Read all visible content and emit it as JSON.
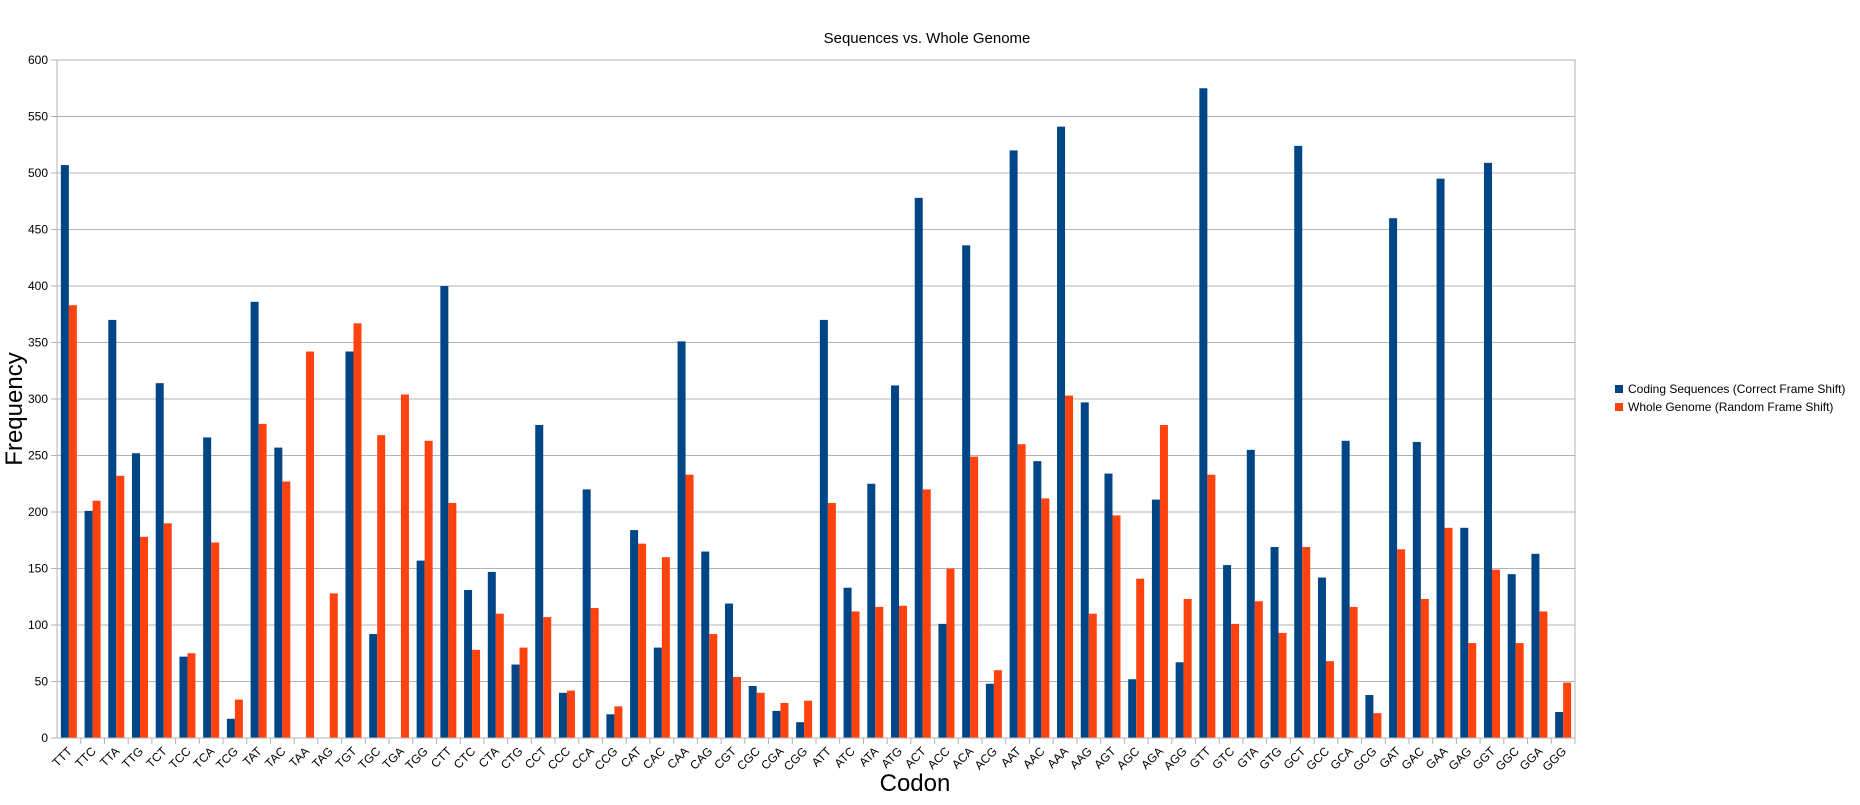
{
  "chart_data": {
    "type": "bar",
    "title": "Sequences vs. Whole Genome",
    "xlabel": "Codon",
    "ylabel": "Frequency",
    "ylim": [
      0,
      600
    ],
    "yticks": [
      0,
      50,
      100,
      150,
      200,
      250,
      300,
      350,
      400,
      450,
      500,
      550,
      600
    ],
    "grid": true,
    "legend_position": "right",
    "categories": [
      "TTT",
      "TTC",
      "TTA",
      "TTG",
      "TCT",
      "TCC",
      "TCA",
      "TCG",
      "TAT",
      "TAC",
      "TAA",
      "TAG",
      "TGT",
      "TGC",
      "TGA",
      "TGG",
      "CTT",
      "CTC",
      "CTA",
      "CTG",
      "CCT",
      "CCC",
      "CCA",
      "CCG",
      "CAT",
      "CAC",
      "CAA",
      "CAG",
      "CGT",
      "CGC",
      "CGA",
      "CGG",
      "ATT",
      "ATC",
      "ATA",
      "ATG",
      "ACT",
      "ACC",
      "ACA",
      "ACG",
      "AAT",
      "AAC",
      "AAA",
      "AAG",
      "AGT",
      "AGC",
      "AGA",
      "AGG",
      "GTT",
      "GTC",
      "GTA",
      "GTG",
      "GCT",
      "GCC",
      "GCA",
      "GCG",
      "GAT",
      "GAC",
      "GAA",
      "GAG",
      "GGT",
      "GGC",
      "GGA",
      "GGG"
    ],
    "series": [
      {
        "name": "Coding Sequences (Correct Frame Shift)",
        "color": "#004586",
        "values": [
          507,
          201,
          370,
          252,
          314,
          72,
          266,
          17,
          386,
          257,
          0,
          0,
          342,
          92,
          0,
          157,
          400,
          131,
          147,
          65,
          277,
          40,
          220,
          21,
          184,
          80,
          351,
          165,
          119,
          46,
          24,
          14,
          370,
          133,
          225,
          312,
          478,
          101,
          436,
          48,
          520,
          245,
          541,
          297,
          234,
          52,
          211,
          67,
          575,
          153,
          255,
          169,
          524,
          142,
          263,
          38,
          460,
          262,
          495,
          186,
          509,
          145,
          163,
          23
        ]
      },
      {
        "name": "Whole Genome (Random Frame Shift)",
        "color": "#ff420e",
        "values": [
          383,
          210,
          232,
          178,
          190,
          75,
          173,
          34,
          278,
          227,
          342,
          128,
          367,
          268,
          304,
          263,
          208,
          78,
          110,
          80,
          107,
          42,
          115,
          28,
          172,
          160,
          233,
          92,
          54,
          40,
          31,
          33,
          208,
          112,
          116,
          117,
          220,
          150,
          249,
          60,
          260,
          212,
          303,
          110,
          197,
          141,
          277,
          123,
          233,
          101,
          121,
          93,
          169,
          68,
          116,
          22,
          167,
          123,
          186,
          84,
          149,
          84,
          112,
          49
        ]
      }
    ]
  }
}
